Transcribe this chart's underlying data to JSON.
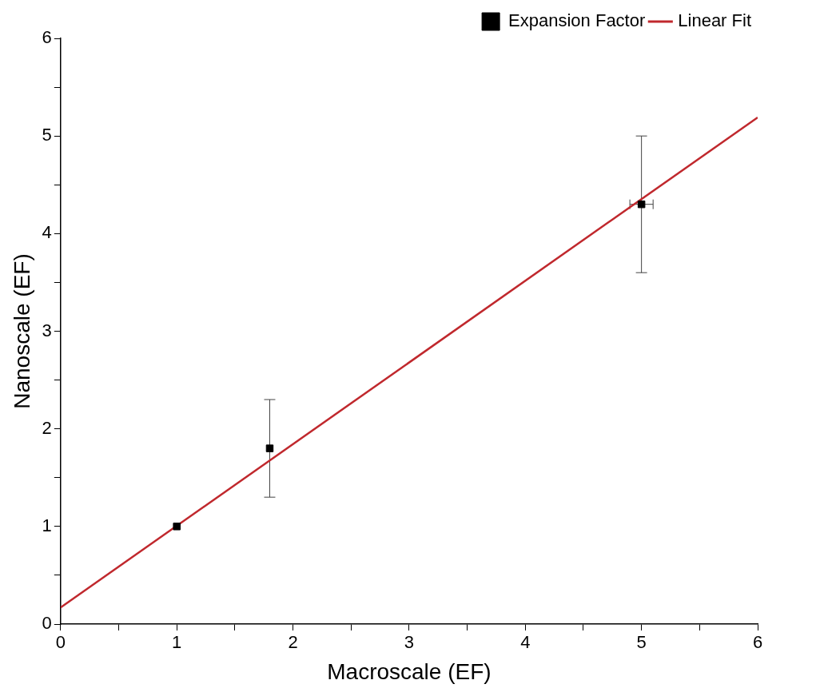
{
  "chart_data": {
    "type": "scatter",
    "xlabel": "Macroscale (EF)",
    "ylabel": "Nanoscale (EF)",
    "xlim": [
      0,
      6
    ],
    "ylim": [
      0,
      6
    ],
    "xticks": [
      0,
      {
        "value": 0.5,
        "label": null
      },
      1,
      {
        "value": 1.5,
        "label": null
      },
      2,
      {
        "value": 2.5,
        "label": null
      },
      3,
      {
        "value": 3.5,
        "label": null
      },
      4,
      {
        "value": 4.5,
        "label": null
      },
      5,
      {
        "value": 5.5,
        "label": null
      },
      6
    ],
    "yticks": [
      0,
      {
        "value": 0.5,
        "label": null
      },
      1,
      {
        "value": 1.5,
        "label": null
      },
      2,
      {
        "value": 2.5,
        "label": null
      },
      3,
      {
        "value": 3.5,
        "label": null
      },
      4,
      {
        "value": 4.5,
        "label": null
      },
      5,
      {
        "value": 5.5,
        "label": null
      },
      6
    ],
    "grid": false,
    "legend": "top right",
    "series": [
      {
        "name": "Expansion Factor",
        "color": "#000000",
        "marker": "square",
        "x": [
          1,
          1.8,
          5
        ],
        "values": [
          1,
          1.8,
          4.3
        ],
        "errors": [
          null,
          0.5,
          0.7
        ],
        "xerrors": [
          null,
          null,
          0.1
        ]
      },
      {
        "name": "Linear Fit",
        "type": "line",
        "color": "#c0282d",
        "marker": "none",
        "line_style": "solid",
        "x": [
          0,
          6
        ],
        "values": [
          0.17,
          5.19
        ]
      }
    ]
  }
}
